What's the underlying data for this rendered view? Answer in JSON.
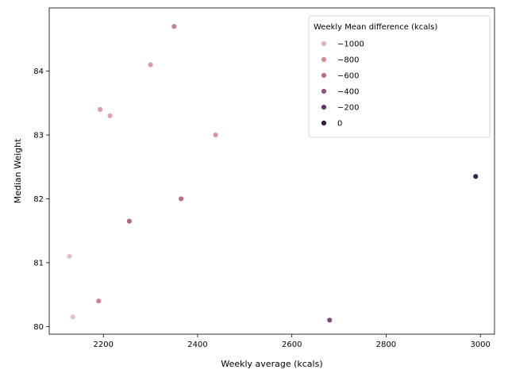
{
  "chart_data": {
    "type": "scatter",
    "title": "",
    "xlabel": "Weekly average (kcals)",
    "ylabel": "Median Weight",
    "xlim": [
      2085,
      3030
    ],
    "ylim": [
      79.88,
      84.99
    ],
    "xticks": [
      2200,
      2400,
      2600,
      2800,
      3000
    ],
    "yticks": [
      80,
      81,
      82,
      83,
      84
    ],
    "grid": false,
    "hue_title": "Weekly Mean difference (kcals)",
    "hue_range": [
      -1150,
      0
    ],
    "legend_placement": "top-right",
    "legend_entries": [
      {
        "label": "−1000",
        "value": -1000
      },
      {
        "label": "−800",
        "value": -800
      },
      {
        "label": "−600",
        "value": -600
      },
      {
        "label": "−400",
        "value": -400
      },
      {
        "label": "−200",
        "value": -200
      },
      {
        "label": "0",
        "value": 0
      }
    ],
    "points": [
      {
        "x": 2350,
        "y": 84.7,
        "hue": -730
      },
      {
        "x": 2300,
        "y": 84.1,
        "hue": -880
      },
      {
        "x": 2193,
        "y": 83.4,
        "hue": -900
      },
      {
        "x": 2214,
        "y": 83.3,
        "hue": -930
      },
      {
        "x": 2438,
        "y": 83.0,
        "hue": -850
      },
      {
        "x": 2990,
        "y": 82.35,
        "hue": -40
      },
      {
        "x": 2365,
        "y": 82.0,
        "hue": -620
      },
      {
        "x": 2255,
        "y": 81.65,
        "hue": -560
      },
      {
        "x": 2128,
        "y": 81.1,
        "hue": -1080
      },
      {
        "x": 2190,
        "y": 80.4,
        "hue": -760
      },
      {
        "x": 2135,
        "y": 80.15,
        "hue": -1080
      },
      {
        "x": 2680,
        "y": 80.1,
        "hue": -330
      }
    ]
  }
}
